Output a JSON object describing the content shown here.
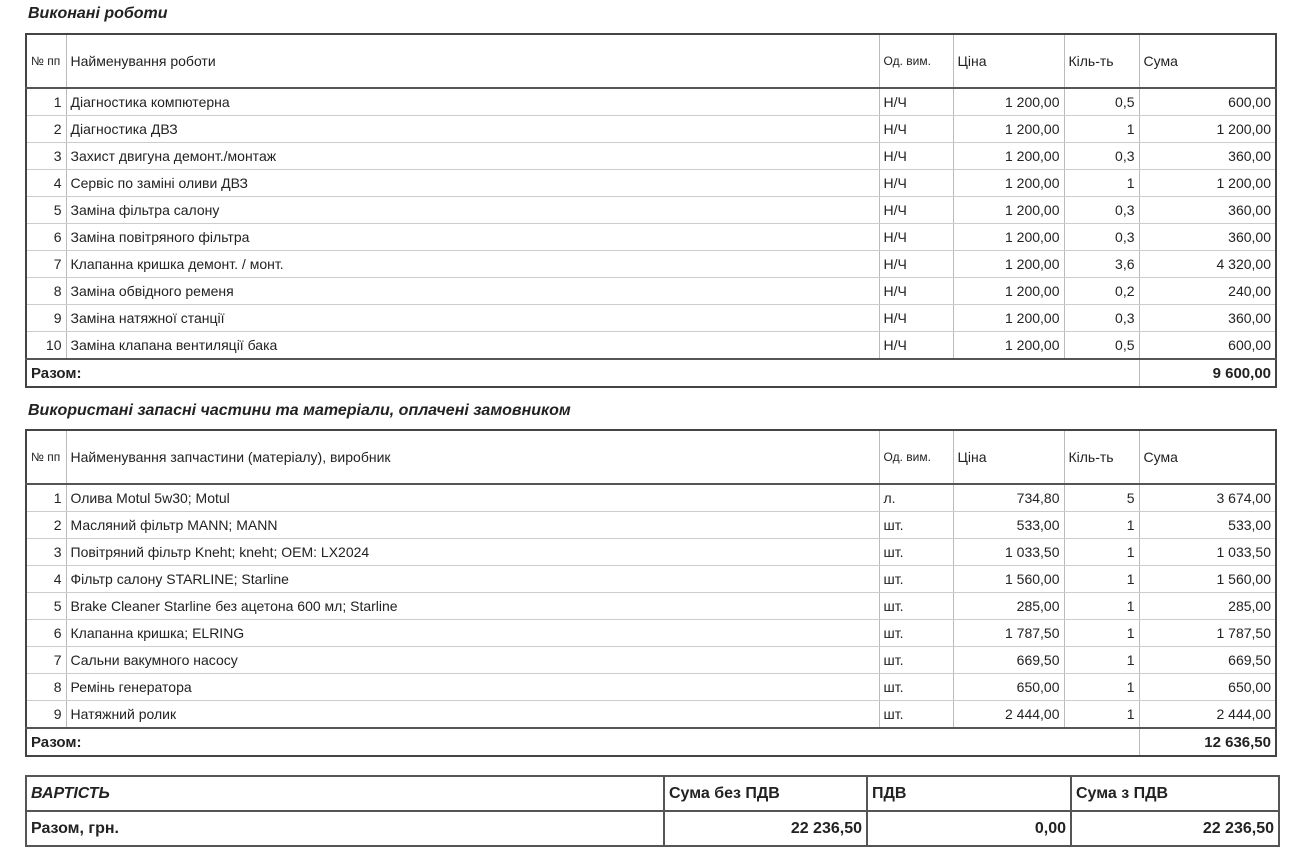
{
  "works": {
    "title": "Виконані роботи",
    "headers": {
      "num": "№ пп",
      "name": "Найменування роботи",
      "unit": "Од. вим.",
      "price": "Ціна",
      "qty": "Кіль-ть",
      "sum": "Сума"
    },
    "rows": [
      {
        "n": "1",
        "name": "Діагностика компютерна",
        "unit": "Н/Ч",
        "price": "1 200,00",
        "qty": "0,5",
        "sum": "600,00"
      },
      {
        "n": "2",
        "name": "Діагностика ДВЗ",
        "unit": "Н/Ч",
        "price": "1 200,00",
        "qty": "1",
        "sum": "1 200,00"
      },
      {
        "n": "3",
        "name": "Захист двигуна демонт./монтаж",
        "unit": "Н/Ч",
        "price": "1 200,00",
        "qty": "0,3",
        "sum": "360,00"
      },
      {
        "n": "4",
        "name": "Сервіс по заміні оливи ДВЗ",
        "unit": "Н/Ч",
        "price": "1 200,00",
        "qty": "1",
        "sum": "1 200,00"
      },
      {
        "n": "5",
        "name": "Заміна фільтра салону",
        "unit": "Н/Ч",
        "price": "1 200,00",
        "qty": "0,3",
        "sum": "360,00"
      },
      {
        "n": "6",
        "name": "Заміна повітряного фільтра",
        "unit": "Н/Ч",
        "price": "1 200,00",
        "qty": "0,3",
        "sum": "360,00"
      },
      {
        "n": "7",
        "name": "Клапанна кришка демонт. / монт.",
        "unit": "Н/Ч",
        "price": "1 200,00",
        "qty": "3,6",
        "sum": "4 320,00"
      },
      {
        "n": "8",
        "name": "Заміна обвідного ременя",
        "unit": "Н/Ч",
        "price": "1 200,00",
        "qty": "0,2",
        "sum": "240,00"
      },
      {
        "n": "9",
        "name": "Заміна натяжної станції",
        "unit": "Н/Ч",
        "price": "1 200,00",
        "qty": "0,3",
        "sum": "360,00"
      },
      {
        "n": "10",
        "name": "Заміна клапана вентиляції бака",
        "unit": "Н/Ч",
        "price": "1 200,00",
        "qty": "0,5",
        "sum": "600,00"
      }
    ],
    "total_label": "Разом:",
    "total": "9 600,00"
  },
  "parts": {
    "title": "Використані запасні частини та матеріали, оплачені замовником",
    "headers": {
      "num": "№ пп",
      "name": "Найменування запчастини (матеріалу), виробник",
      "unit": "Од. вим.",
      "price": "Ціна",
      "qty": "Кіль-ть",
      "sum": "Сума"
    },
    "rows": [
      {
        "n": "1",
        "name": "Олива Motul 5w30; Motul",
        "unit": "л.",
        "price": "734,80",
        "qty": "5",
        "sum": "3 674,00"
      },
      {
        "n": "2",
        "name": "Масляний фільтр MANN; MANN",
        "unit": "шт.",
        "price": "533,00",
        "qty": "1",
        "sum": "533,00"
      },
      {
        "n": "3",
        "name": "Повітряний фільтр Kneht; kneht; OEM: LX2024",
        "unit": "шт.",
        "price": "1 033,50",
        "qty": "1",
        "sum": "1 033,50"
      },
      {
        "n": "4",
        "name": "Фільтр салону STARLINE; Starline",
        "unit": "шт.",
        "price": "1 560,00",
        "qty": "1",
        "sum": "1 560,00"
      },
      {
        "n": "5",
        "name": "Brake Cleaner Starline без ацетона 600 мл; Starline",
        "unit": "шт.",
        "price": "285,00",
        "qty": "1",
        "sum": "285,00"
      },
      {
        "n": "6",
        "name": "Клапанна кришка; ELRING",
        "unit": "шт.",
        "price": "1 787,50",
        "qty": "1",
        "sum": "1 787,50"
      },
      {
        "n": "7",
        "name": "Сальни вакумного насосу",
        "unit": "шт.",
        "price": "669,50",
        "qty": "1",
        "sum": "669,50"
      },
      {
        "n": "8",
        "name": "Ремінь генератора",
        "unit": "шт.",
        "price": "650,00",
        "qty": "1",
        "sum": "650,00"
      },
      {
        "n": "9",
        "name": "Натяжний ролик",
        "unit": "шт.",
        "price": "2 444,00",
        "qty": "1",
        "sum": "2 444,00"
      }
    ],
    "total_label": "Разом:",
    "total": "12 636,50"
  },
  "summary": {
    "header": {
      "label": "ВАРТІСТЬ",
      "net": "Сума без ПДВ",
      "vat": "ПДВ",
      "gross": "Сума з ПДВ"
    },
    "row": {
      "label": "Разом, грн.",
      "net": "22 236,50",
      "vat": "0,00",
      "gross": "22 236,50"
    }
  }
}
